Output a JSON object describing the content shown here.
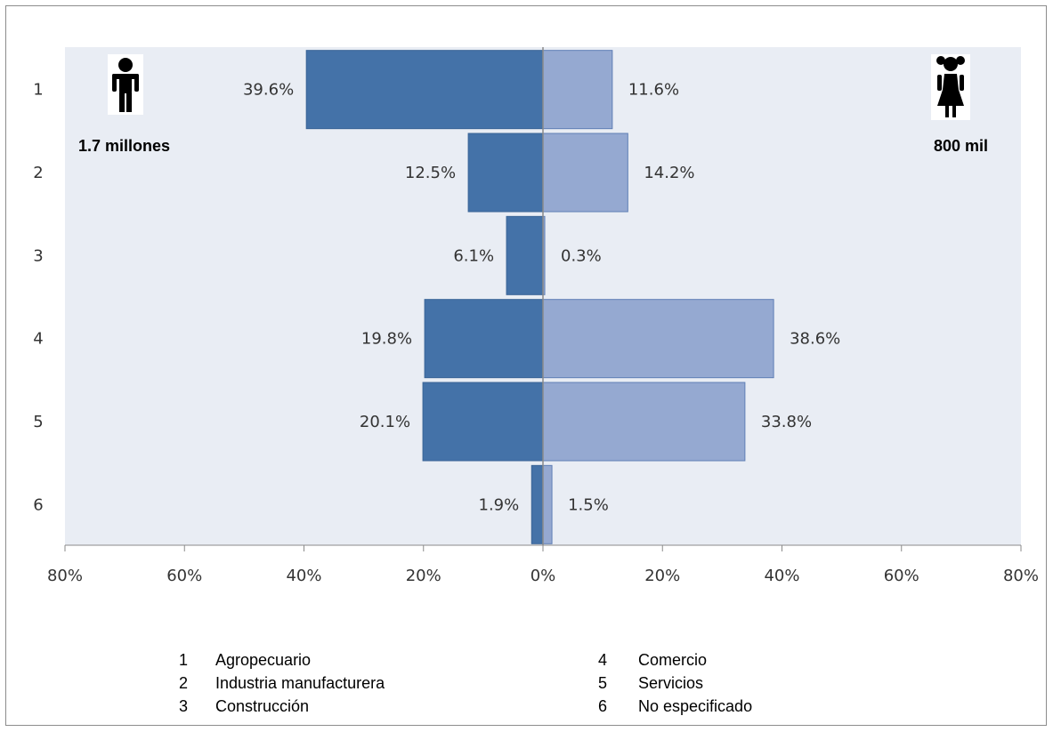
{
  "chart_data": {
    "type": "bar",
    "orientation": "horizontal",
    "layout": "diverging",
    "categories": [
      "1",
      "2",
      "3",
      "4",
      "5",
      "6"
    ],
    "series": [
      {
        "side": "left",
        "values": [
          39.6,
          12.5,
          6.1,
          19.8,
          20.1,
          1.9
        ],
        "color": "#4472a8"
      },
      {
        "side": "right",
        "values": [
          11.6,
          14.2,
          0.3,
          38.6,
          33.8,
          1.5
        ],
        "color": "#95a9d1"
      }
    ],
    "data_labels": {
      "left": [
        "39.6%",
        "12.5%",
        "6.1%",
        "19.8%",
        "20.1%",
        "1.9%"
      ],
      "right": [
        "11.6%",
        "14.2%",
        "0.3%",
        "38.6%",
        "33.8%",
        "1.5%"
      ]
    },
    "x_ticks": [
      "80%",
      "60%",
      "40%",
      "20%",
      "0%",
      "20%",
      "40%",
      "60%",
      "80%"
    ],
    "xlim": [
      -80,
      80
    ],
    "grid": false,
    "plot_background": "#e9edf4",
    "annotations": {
      "left_group": {
        "icon": "boy-icon",
        "label": "1.7 millones"
      },
      "right_group": {
        "icon": "girl-icon",
        "label": "800 mil"
      }
    },
    "legend": {
      "placement": "bottom",
      "columns": [
        [
          {
            "num": "1",
            "label": "Agropecuario"
          },
          {
            "num": "2",
            "label": "Industria manufacturera"
          },
          {
            "num": "3",
            "label": "Construcción"
          }
        ],
        [
          {
            "num": "4",
            "label": "Comercio"
          },
          {
            "num": "5",
            "label": "Servicios"
          },
          {
            "num": "6",
            "label": "No especificado"
          }
        ]
      ]
    }
  }
}
